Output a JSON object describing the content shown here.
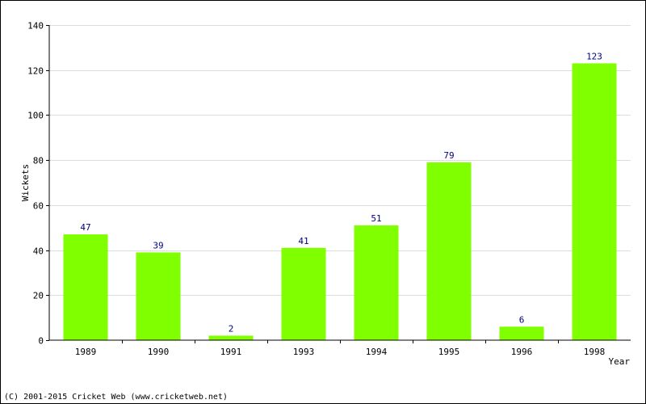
{
  "chart_data": {
    "type": "bar",
    "categories": [
      "1989",
      "1990",
      "1991",
      "1993",
      "1994",
      "1995",
      "1996",
      "1998"
    ],
    "values": [
      47,
      39,
      2,
      41,
      51,
      79,
      6,
      123
    ],
    "title": "",
    "xlabel": "Year",
    "ylabel": "Wickets",
    "ylim": [
      0,
      140
    ],
    "yticks": [
      0,
      20,
      40,
      60,
      80,
      100,
      120,
      140
    ],
    "grid": "horizontal",
    "data_labels": true,
    "bar_color": "#80ff00",
    "label_color": "#000080",
    "grid_color": "#dcdcdc"
  },
  "footer": {
    "copyright": "(C) 2001-2015 Cricket Web (www.cricketweb.net)"
  }
}
